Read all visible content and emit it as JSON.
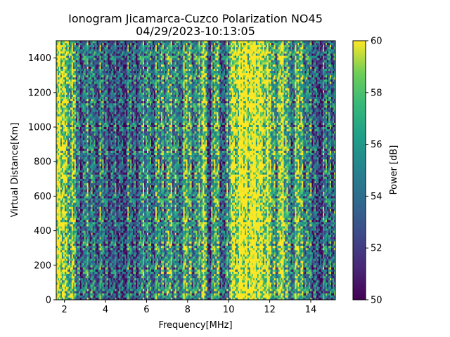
{
  "chart_data": {
    "type": "heatmap",
    "title": "Ionogram Jicamarca-Cuzco Polarization NO45",
    "subtitle": "04/29/2023-10:13:05",
    "xlabel": "Frequency[MHz]",
    "ylabel": "Virtual Distance[Km]",
    "xlim": [
      1.6,
      15.2
    ],
    "ylim": [
      0,
      1500
    ],
    "x_ticks": [
      2,
      4,
      6,
      8,
      10,
      12,
      14
    ],
    "y_ticks": [
      0,
      200,
      400,
      600,
      800,
      1000,
      1200,
      1400
    ],
    "colorbar": {
      "label": "Power [dB]",
      "range": [
        50,
        60
      ],
      "ticks": [
        50,
        52,
        54,
        56,
        58,
        60
      ],
      "colormap": "viridis"
    },
    "band_profile": {
      "frequency_mhz": [
        1.6,
        2.0,
        2.4,
        2.7,
        3.0,
        3.5,
        4.0,
        4.5,
        5.0,
        5.5,
        6.0,
        6.5,
        7.0,
        7.5,
        8.0,
        8.5,
        8.8,
        9.1,
        9.4,
        9.8,
        10.2,
        10.6,
        11.0,
        11.4,
        11.8,
        12.2,
        12.6,
        13.0,
        13.5,
        14.0,
        14.5,
        15.2
      ],
      "mean_power_db": [
        59.5,
        58.5,
        57.0,
        53.0,
        53.5,
        54.0,
        53.0,
        52.0,
        53.0,
        52.5,
        55.0,
        54.0,
        55.5,
        54.5,
        56.0,
        54.0,
        59.0,
        52.0,
        57.0,
        51.5,
        59.5,
        60.0,
        60.0,
        60.0,
        59.5,
        55.0,
        58.5,
        55.0,
        56.5,
        53.0,
        52.5,
        54.0
      ]
    }
  }
}
